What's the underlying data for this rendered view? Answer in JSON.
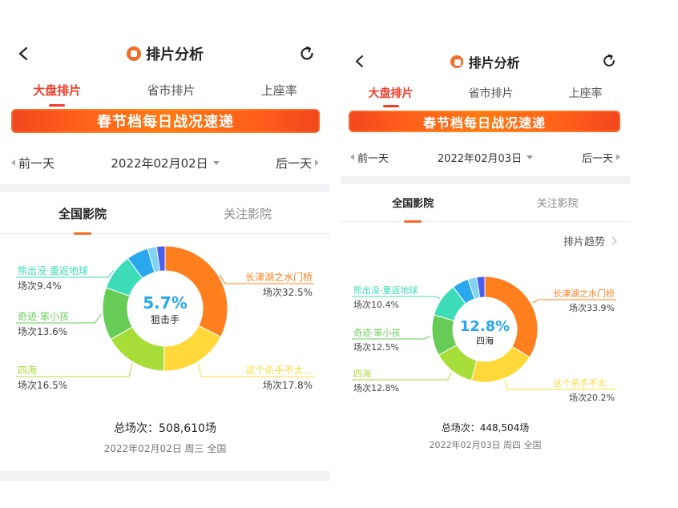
{
  "screens": [
    {
      "title": "排片分析",
      "tabs": [
        {
          "label": "大盘排片",
          "active": true
        },
        {
          "label": "省市排片",
          "active": false
        },
        {
          "label": "上座率",
          "active": false
        }
      ],
      "banner": "春节档每日战况速递",
      "prev_label": "前一天",
      "next_label": "后一天",
      "date": "2022年02月02日",
      "subtabs": [
        {
          "label": "全国影院",
          "active": true
        },
        {
          "label": "关注影院",
          "active": false
        }
      ],
      "trend_label": "",
      "total_label": "总场次：508,610场",
      "footer_date": "2022年02月02日 周三 全国",
      "chart_data": {
        "type": "pie",
        "center_value": "5.7%",
        "center_label": "狙击手",
        "slices": [
          {
            "name": "长津湖之水门桥",
            "value": 32.5,
            "label": "场次32.5%",
            "color": "#ff7f1e"
          },
          {
            "name": "这个杀手不太...",
            "value": 17.8,
            "label": "场次17.8%",
            "color": "#ffd93a"
          },
          {
            "name": "四海",
            "value": 16.5,
            "label": "场次16.5%",
            "color": "#a7dd38"
          },
          {
            "name": "奇迹·笨小孩",
            "value": 13.6,
            "label": "场次13.6%",
            "color": "#66cc55"
          },
          {
            "name": "熊出没·重返地球",
            "value": 9.4,
            "label": "场次9.4%",
            "color": "#3cdcb8"
          },
          {
            "name": "狙击手",
            "value": 5.7,
            "label": "",
            "color": "#2aa8ee"
          },
          {
            "name": "",
            "value": 2.3,
            "label": "",
            "color": "#7fd3f5"
          },
          {
            "name": "",
            "value": 2.2,
            "label": "",
            "color": "#4a5ef0"
          }
        ]
      }
    },
    {
      "title": "排片分析",
      "tabs": [
        {
          "label": "大盘排片",
          "active": true
        },
        {
          "label": "省市排片",
          "active": false
        },
        {
          "label": "上座率",
          "active": false
        }
      ],
      "banner": "春节档每日战况速递",
      "prev_label": "前一天",
      "next_label": "后一天",
      "date": "2022年02月03日",
      "subtabs": [
        {
          "label": "全国影院",
          "active": true
        },
        {
          "label": "关注影院",
          "active": false
        }
      ],
      "trend_label": "排片趋势",
      "total_label": "总场次：448,504场",
      "footer_date": "2022年02月03日 周四 全国",
      "chart_data": {
        "type": "pie",
        "center_value": "12.8%",
        "center_label": "四海",
        "slices": [
          {
            "name": "长津湖之水门桥",
            "value": 33.9,
            "label": "场次33.9%",
            "color": "#ff7f1e"
          },
          {
            "name": "这个杀手不太...",
            "value": 20.2,
            "label": "场次20.2%",
            "color": "#ffd93a"
          },
          {
            "name": "四海",
            "value": 12.8,
            "label": "场次12.8%",
            "color": "#a7dd38"
          },
          {
            "name": "奇迹·笨小孩",
            "value": 12.5,
            "label": "场次12.5%",
            "color": "#66cc55"
          },
          {
            "name": "熊出没·重返地球",
            "value": 10.4,
            "label": "场次10.4%",
            "color": "#3cdcb8"
          },
          {
            "name": "",
            "value": 5.0,
            "label": "",
            "color": "#2aa8ee"
          },
          {
            "name": "",
            "value": 2.7,
            "label": "",
            "color": "#7fd3f5"
          },
          {
            "name": "",
            "value": 2.5,
            "label": "",
            "color": "#4a5ef0"
          }
        ]
      }
    }
  ]
}
